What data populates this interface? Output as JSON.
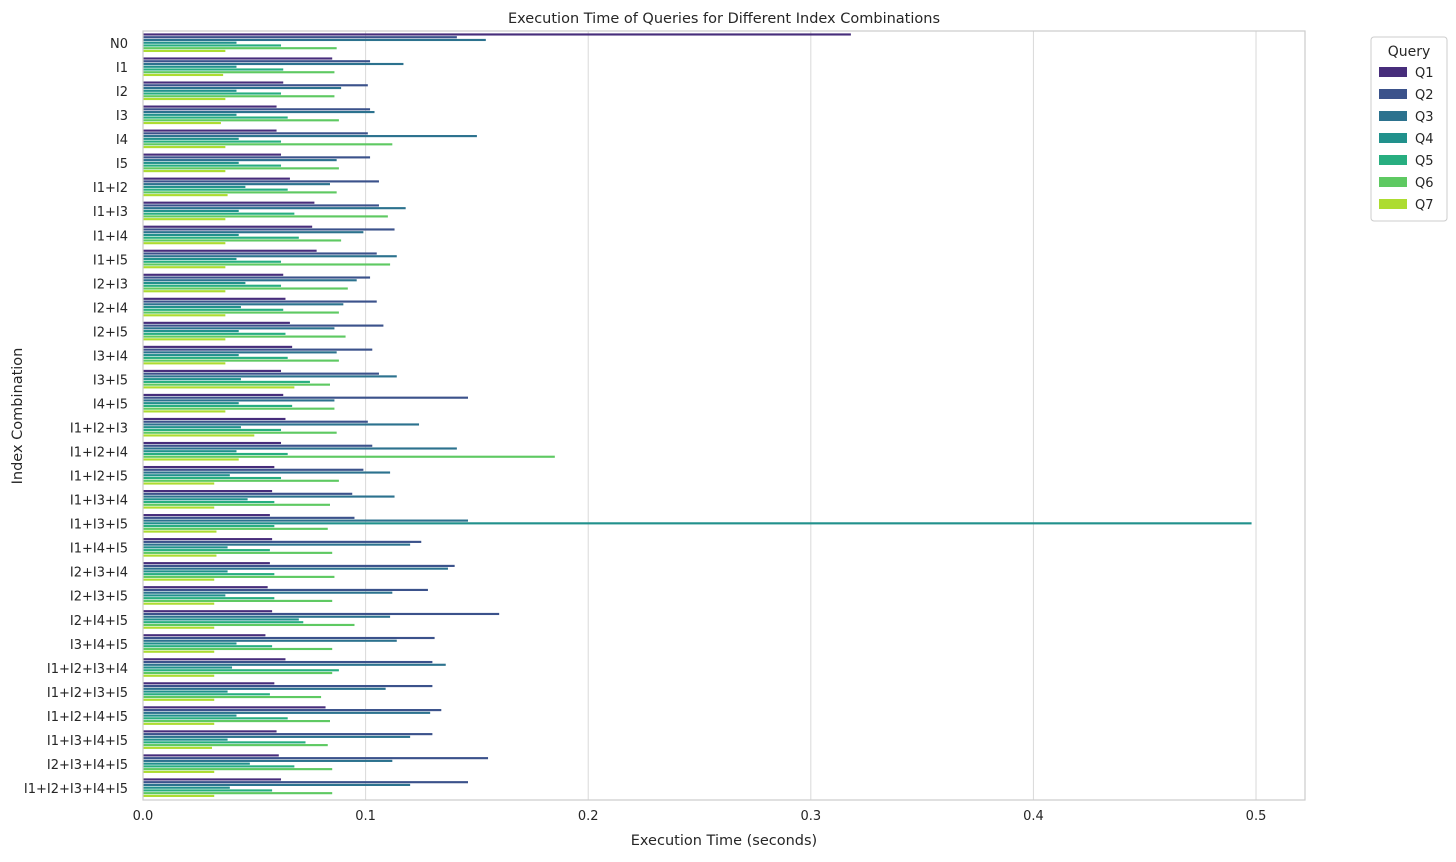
{
  "chart_data": {
    "type": "bar",
    "orientation": "horizontal",
    "title": "Execution Time of Queries for Different Index Combinations",
    "xlabel": "Execution Time (seconds)",
    "ylabel": "Index Combination",
    "xlim": [
      0,
      0.522
    ],
    "xticks": [
      0.0,
      0.1,
      0.2,
      0.3,
      0.4,
      0.5
    ],
    "xtick_labels": [
      "0.0",
      "0.1",
      "0.2",
      "0.3",
      "0.4",
      "0.5"
    ],
    "grid": "vertical",
    "legend": {
      "title": "Query",
      "placement": "upper-right outside"
    },
    "categories": [
      "N0",
      "I1",
      "I2",
      "I3",
      "I4",
      "I5",
      "I1+I2",
      "I1+I3",
      "I1+I4",
      "I1+I5",
      "I2+I3",
      "I2+I4",
      "I2+I5",
      "I3+I4",
      "I3+I5",
      "I4+I5",
      "I1+I2+I3",
      "I1+I2+I4",
      "I1+I2+I5",
      "I1+I3+I4",
      "I1+I3+I5",
      "I1+I4+I5",
      "I2+I3+I4",
      "I2+I3+I5",
      "I2+I4+I5",
      "I3+I4+I5",
      "I1+I2+I3+I4",
      "I1+I2+I3+I5",
      "I1+I2+I4+I5",
      "I1+I3+I4+I5",
      "I2+I3+I4+I5",
      "I1+I2+I3+I4+I5"
    ],
    "series": [
      {
        "name": "Q1",
        "color": "#472d7b",
        "values": [
          0.318,
          0.085,
          0.063,
          0.06,
          0.06,
          0.062,
          0.066,
          0.077,
          0.076,
          0.078,
          0.063,
          0.064,
          0.066,
          0.067,
          0.062,
          0.063,
          0.064,
          0.062,
          0.059,
          0.058,
          0.057,
          0.058,
          0.057,
          0.056,
          0.058,
          0.055,
          0.064,
          0.059,
          0.082,
          0.06,
          0.061,
          0.062
        ]
      },
      {
        "name": "Q2",
        "color": "#3b528b",
        "values": [
          0.141,
          0.102,
          0.101,
          0.102,
          0.101,
          0.102,
          0.106,
          0.106,
          0.113,
          0.105,
          0.102,
          0.105,
          0.108,
          0.103,
          0.106,
          0.146,
          0.101,
          0.103,
          0.099,
          0.094,
          0.095,
          0.125,
          0.14,
          0.128,
          0.16,
          0.131,
          0.13,
          0.13,
          0.134,
          0.13,
          0.155,
          0.146
        ]
      },
      {
        "name": "Q3",
        "color": "#2c728e",
        "values": [
          0.154,
          0.117,
          0.089,
          0.104,
          0.15,
          0.087,
          0.084,
          0.118,
          0.099,
          0.114,
          0.096,
          0.09,
          0.086,
          0.087,
          0.114,
          0.086,
          0.124,
          0.141,
          0.111,
          0.113,
          0.146,
          0.12,
          0.137,
          0.112,
          0.111,
          0.114,
          0.136,
          0.109,
          0.129,
          0.12,
          0.112,
          0.12
        ]
      },
      {
        "name": "Q4",
        "color": "#21918c",
        "values": [
          0.042,
          0.042,
          0.042,
          0.042,
          0.043,
          0.043,
          0.046,
          0.043,
          0.043,
          0.042,
          0.046,
          0.044,
          0.043,
          0.043,
          0.044,
          0.043,
          0.044,
          0.042,
          0.039,
          0.047,
          0.498,
          0.038,
          0.038,
          0.037,
          0.07,
          0.042,
          0.04,
          0.038,
          0.042,
          0.038,
          0.048,
          0.039
        ]
      },
      {
        "name": "Q5",
        "color": "#28ae80",
        "values": [
          0.062,
          0.063,
          0.062,
          0.065,
          0.062,
          0.062,
          0.065,
          0.068,
          0.07,
          0.062,
          0.062,
          0.063,
          0.064,
          0.065,
          0.075,
          0.067,
          0.062,
          0.065,
          0.062,
          0.059,
          0.059,
          0.057,
          0.059,
          0.059,
          0.072,
          0.058,
          0.088,
          0.057,
          0.065,
          0.073,
          0.068,
          0.058
        ]
      },
      {
        "name": "Q6",
        "color": "#5ec962",
        "values": [
          0.087,
          0.086,
          0.086,
          0.088,
          0.112,
          0.088,
          0.087,
          0.11,
          0.089,
          0.111,
          0.092,
          0.088,
          0.091,
          0.088,
          0.084,
          0.086,
          0.087,
          0.185,
          0.088,
          0.084,
          0.083,
          0.085,
          0.086,
          0.085,
          0.095,
          0.085,
          0.085,
          0.08,
          0.084,
          0.083,
          0.085,
          0.085
        ]
      },
      {
        "name": "Q7",
        "color": "#addc30",
        "values": [
          0.037,
          0.036,
          0.037,
          0.035,
          0.037,
          0.037,
          0.038,
          0.037,
          0.037,
          0.037,
          0.037,
          0.037,
          0.037,
          0.037,
          0.068,
          0.037,
          0.05,
          0.043,
          0.032,
          0.032,
          0.033,
          0.033,
          0.032,
          0.032,
          0.032,
          0.032,
          0.032,
          0.032,
          0.032,
          0.031,
          0.032,
          0.032
        ]
      }
    ]
  }
}
